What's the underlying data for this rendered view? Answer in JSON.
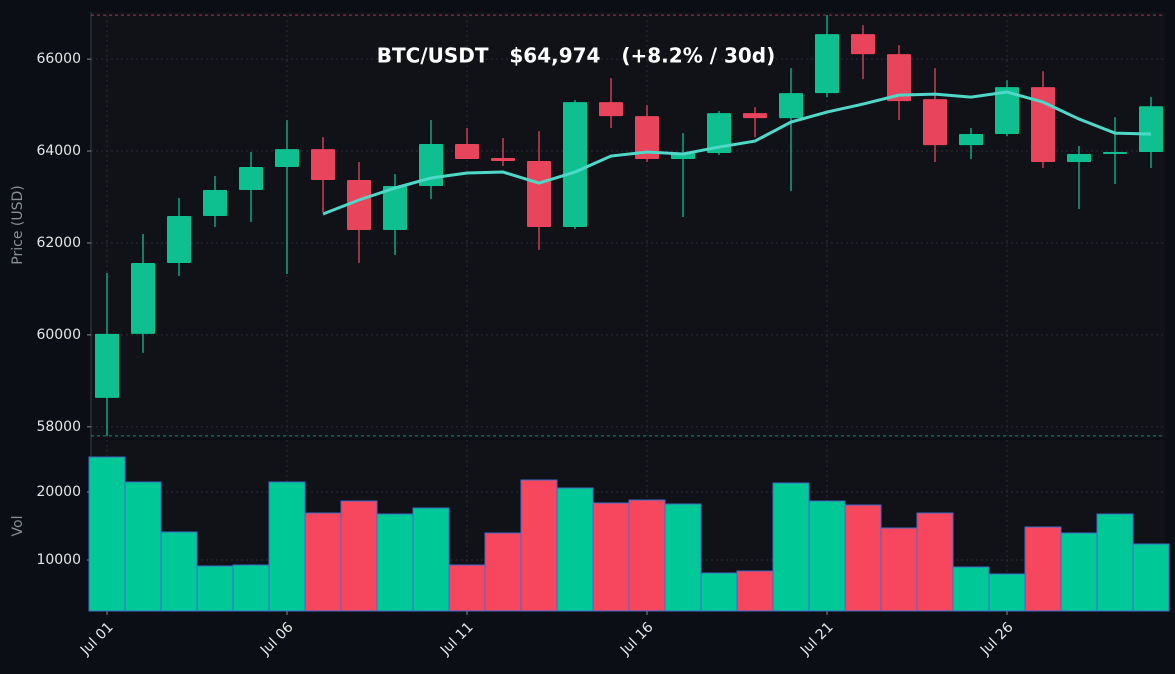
{
  "chart_data": {
    "type": "candlestick",
    "title": "BTC/USDT   $64,974   (+8.2% / 30d)",
    "y_label": "Price (USD)",
    "y2_label": "Vol",
    "x": [
      "Jul 01",
      null,
      null,
      null,
      null,
      "Jul 06",
      null,
      null,
      null,
      null,
      "Jul 11",
      null,
      null,
      null,
      null,
      "Jul 16",
      null,
      null,
      null,
      null,
      "Jul 21",
      null,
      null,
      null,
      null,
      "Jul 26",
      null,
      null,
      null,
      null
    ],
    "open": [
      58630,
      60022,
      61565,
      62587,
      63152,
      63652,
      64043,
      63370,
      62283,
      63239,
      64152,
      63848,
      63783,
      62348,
      65065,
      64761,
      63826,
      63957,
      64826,
      64717,
      65261,
      66543,
      66109,
      65130,
      64130,
      64370,
      65391,
      63761,
      63935,
      63978
    ],
    "high": [
      61348,
      62196,
      62978,
      63456,
      63978,
      64674,
      64304,
      63761,
      63500,
      64674,
      64500,
      64283,
      64435,
      65109,
      65587,
      65000,
      64391,
      64870,
      64957,
      65804,
      66957,
      66739,
      66304,
      65804,
      64500,
      65543,
      65739,
      64109,
      64739,
      65174
    ],
    "low": [
      57804,
      59609,
      61283,
      62348,
      62457,
      61326,
      62674,
      61565,
      61739,
      62957,
      63826,
      63674,
      61848,
      62304,
      64500,
      63761,
      62565,
      63913,
      64304,
      63130,
      65174,
      65565,
      64674,
      63761,
      63826,
      64326,
      63630,
      62739,
      63283,
      63630
    ],
    "close": [
      60022,
      61565,
      62587,
      63152,
      63652,
      64043,
      63370,
      62283,
      63239,
      64152,
      63826,
      63783,
      62348,
      65065,
      64761,
      63826,
      63957,
      64826,
      64717,
      65261,
      66543,
      66109,
      65087,
      64130,
      64370,
      65391,
      63761,
      63935,
      63978,
      64974
    ],
    "ma": [
      null,
      null,
      null,
      null,
      null,
      null,
      62630,
      62935,
      63196,
      63413,
      63522,
      63543,
      63304,
      63543,
      63891,
      63978,
      63935,
      64087,
      64217,
      64630,
      64848,
      65022,
      65217,
      65239,
      65174,
      65283,
      65065,
      64696,
      64391,
      64370
    ],
    "ma_color": "#4fd8c8",
    "volume": [
      25147,
      21471,
      14118,
      9118,
      9265,
      21471,
      16912,
      18676,
      16765,
      17647,
      9265,
      13971,
      21765,
      20588,
      18382,
      18824,
      18235,
      8088,
      8382,
      21324,
      18676,
      18088,
      14706,
      16912,
      8971,
      7941,
      14853,
      13971,
      16765,
      12353
    ],
    "up_color": "#0ec08f",
    "down_color": "#e8445c",
    "ylim": [
      57800,
      66960
    ],
    "yticks": [
      58000,
      60000,
      62000,
      64000,
      66000
    ],
    "y2lim": [
      2500,
      27650
    ],
    "y2ticks": [
      10000,
      20000
    ],
    "grid": true
  }
}
